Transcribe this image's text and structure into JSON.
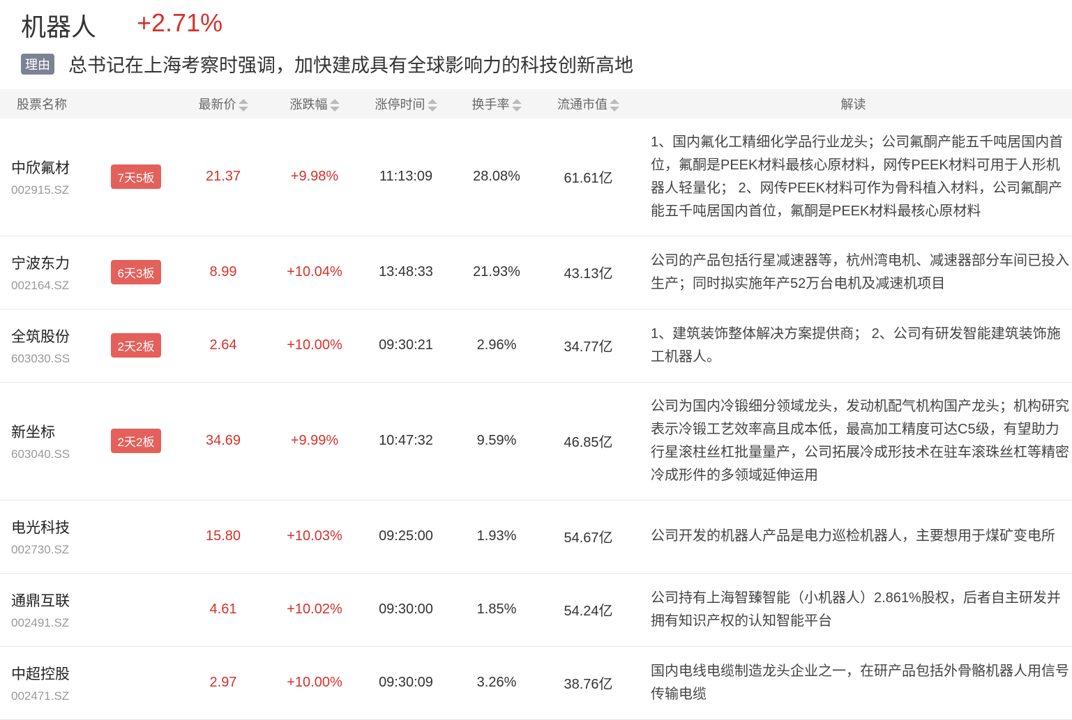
{
  "header": {
    "title": "机器人",
    "change": "+2.71%",
    "reason_tag": "理由",
    "reason": "总书记在上海考察时强调，加快建成具有全球影响力的科技创新高地"
  },
  "columns": [
    "股票名称",
    "最新价",
    "涨跌幅",
    "涨停时间",
    "换手率",
    "流通市值",
    "解读"
  ],
  "colors": {
    "up": "#d9312b",
    "badge": "#e4605a",
    "tag": "#7d8194"
  },
  "rows": [
    {
      "name": "中欣氟材",
      "code": "002915.SZ",
      "badge": "7天5板",
      "price": "21.37",
      "change": "+9.98%",
      "time": "11:13:09",
      "turnover": "28.08%",
      "cap": "61.61亿",
      "desc": "1、国内氟化工精细化学品行业龙头；公司氟酮产能五千吨居国内首位，氟酮是PEEK材料最核心原材料，网传PEEK材料可用于人形机器人轻量化； 2、网传PEEK材料可作为骨科植入材料，公司氟酮产能五千吨居国内首位，氟酮是PEEK材料最核心原材料"
    },
    {
      "name": "宁波东力",
      "code": "002164.SZ",
      "badge": "6天3板",
      "price": "8.99",
      "change": "+10.04%",
      "time": "13:48:33",
      "turnover": "21.93%",
      "cap": "43.13亿",
      "desc": "公司的产品包括行星减速器等，杭州湾电机、减速器部分车间已投入生产；同时拟实施年产52万台电机及减速机项目"
    },
    {
      "name": "全筑股份",
      "code": "603030.SS",
      "badge": "2天2板",
      "price": "2.64",
      "change": "+10.00%",
      "time": "09:30:21",
      "turnover": "2.96%",
      "cap": "34.77亿",
      "desc": "1、建筑装饰整体解决方案提供商； 2、公司有研发智能建筑装饰施工机器人。"
    },
    {
      "name": "新坐标",
      "code": "603040.SS",
      "badge": "2天2板",
      "price": "34.69",
      "change": "+9.99%",
      "time": "10:47:32",
      "turnover": "9.59%",
      "cap": "46.85亿",
      "desc": "公司为国内冷锻细分领域龙头，发动机配气机构国产龙头；机构研究表示冷锻工艺效率高且成本低，最高加工精度可达C5级，有望助力行星滚柱丝杠批量量产，公司拓展冷成形技术在驻车滚珠丝杠等精密冷成形件的多领域延伸运用"
    },
    {
      "name": "电光科技",
      "code": "002730.SZ",
      "badge": "",
      "price": "15.80",
      "change": "+10.03%",
      "time": "09:25:00",
      "turnover": "1.93%",
      "cap": "54.67亿",
      "desc": "公司开发的机器人产品是电力巡检机器人，主要想用于煤矿变电所"
    },
    {
      "name": "通鼎互联",
      "code": "002491.SZ",
      "badge": "",
      "price": "4.61",
      "change": "+10.02%",
      "time": "09:30:00",
      "turnover": "1.85%",
      "cap": "54.24亿",
      "desc": "公司持有上海智臻智能（小机器人）2.861%股权，后者自主研发并拥有知识产权的认知智能平台"
    },
    {
      "name": "中超控股",
      "code": "002471.SZ",
      "badge": "",
      "price": "2.97",
      "change": "+10.00%",
      "time": "09:30:09",
      "turnover": "3.26%",
      "cap": "38.76亿",
      "desc": "国内电线电缆制造龙头企业之一，在研产品包括外骨骼机器人用信号传输电缆"
    }
  ]
}
